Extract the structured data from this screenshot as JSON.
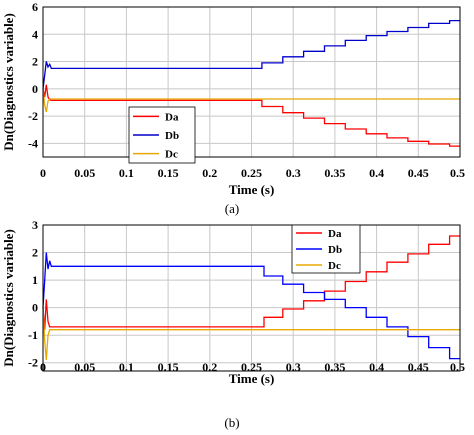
{
  "chart_data": [
    {
      "type": "line",
      "panel_label": "(a)",
      "xlabel": "Time (s)",
      "ylabel": "Dn(Diagnostics variable)",
      "xlim": [
        0,
        0.5
      ],
      "ylim": [
        -5,
        6
      ],
      "x_ticks": [
        "0",
        "0.05",
        "0.1",
        "0.15",
        "0.2",
        "0.25",
        "0.3",
        "0.35",
        "0.4",
        "0.45",
        "0.5"
      ],
      "y_ticks": [
        "-4",
        "-2",
        "0",
        "2",
        "4",
        "6"
      ],
      "grid": true,
      "legend_position": "lower-center",
      "series": [
        {
          "name": "Da",
          "color": "#ff0000",
          "x": [
            0,
            0.002,
            0.004,
            0.006,
            0.008,
            0.01,
            0.015,
            0.25,
            0.275,
            0.3,
            0.325,
            0.35,
            0.375,
            0.4,
            0.425,
            0.45,
            0.475,
            0.5
          ],
          "y": [
            0,
            -0.6,
            0.3,
            -0.6,
            -0.8,
            -0.85,
            -0.85,
            -0.85,
            -1.3,
            -1.75,
            -2.15,
            -2.55,
            -2.95,
            -3.3,
            -3.6,
            -3.85,
            -4.05,
            -4.2
          ]
        },
        {
          "name": "Db",
          "color": "#0000cc",
          "x": [
            0,
            0.002,
            0.004,
            0.006,
            0.008,
            0.01,
            0.015,
            0.25,
            0.275,
            0.3,
            0.325,
            0.35,
            0.375,
            0.4,
            0.425,
            0.45,
            0.475,
            0.5
          ],
          "y": [
            0,
            1.0,
            2.0,
            1.6,
            1.8,
            1.5,
            1.5,
            1.5,
            1.9,
            2.35,
            2.75,
            3.15,
            3.55,
            3.9,
            4.2,
            4.5,
            4.8,
            5.0
          ]
        },
        {
          "name": "Dc",
          "color": "#e8a800",
          "x": [
            0,
            0.002,
            0.004,
            0.006,
            0.008,
            0.01,
            0.015,
            0.5
          ],
          "y": [
            0,
            -1.2,
            -1.7,
            -0.9,
            -0.75,
            -0.75,
            -0.75,
            -0.75
          ]
        }
      ]
    },
    {
      "type": "line",
      "panel_label": "(b)",
      "xlabel": "Time (s)",
      "ylabel": "Dn(Diagnostics variable)",
      "xlim": [
        0,
        0.5
      ],
      "ylim": [
        -2.3,
        3
      ],
      "x_ticks": [
        "0",
        "0.05",
        "0.1",
        "0.15",
        "0.2",
        "0.25",
        "0.3",
        "0.35",
        "0.4",
        "0.45",
        "0.5"
      ],
      "y_ticks": [
        "-2",
        "-1",
        "0",
        "1",
        "2",
        "3"
      ],
      "grid": true,
      "legend_position": "top-right",
      "series": [
        {
          "name": "Da",
          "color": "#ff0000",
          "x": [
            0,
            0.002,
            0.004,
            0.006,
            0.008,
            0.01,
            0.015,
            0.255,
            0.275,
            0.3,
            0.325,
            0.35,
            0.375,
            0.4,
            0.425,
            0.45,
            0.475,
            0.5
          ],
          "y": [
            0,
            -0.8,
            0.3,
            -0.5,
            -0.7,
            -0.7,
            -0.7,
            -0.7,
            -0.35,
            -0.05,
            0.25,
            0.6,
            0.95,
            1.3,
            1.65,
            1.95,
            2.3,
            2.6
          ]
        },
        {
          "name": "Db",
          "color": "#0000ff",
          "x": [
            0,
            0.002,
            0.004,
            0.006,
            0.008,
            0.01,
            0.015,
            0.255,
            0.275,
            0.3,
            0.325,
            0.35,
            0.375,
            0.4,
            0.425,
            0.45,
            0.475,
            0.5
          ],
          "y": [
            0,
            1.0,
            2.0,
            1.4,
            1.7,
            1.5,
            1.5,
            1.5,
            1.15,
            0.85,
            0.55,
            0.3,
            0.0,
            -0.35,
            -0.7,
            -1.05,
            -1.45,
            -1.85
          ]
        },
        {
          "name": "Dc",
          "color": "#e8a800",
          "x": [
            0,
            0.002,
            0.004,
            0.006,
            0.008,
            0.01,
            0.015,
            0.5
          ],
          "y": [
            0,
            -1.2,
            -1.9,
            -1.0,
            -0.8,
            -0.8,
            -0.8,
            -0.8
          ]
        }
      ]
    }
  ]
}
